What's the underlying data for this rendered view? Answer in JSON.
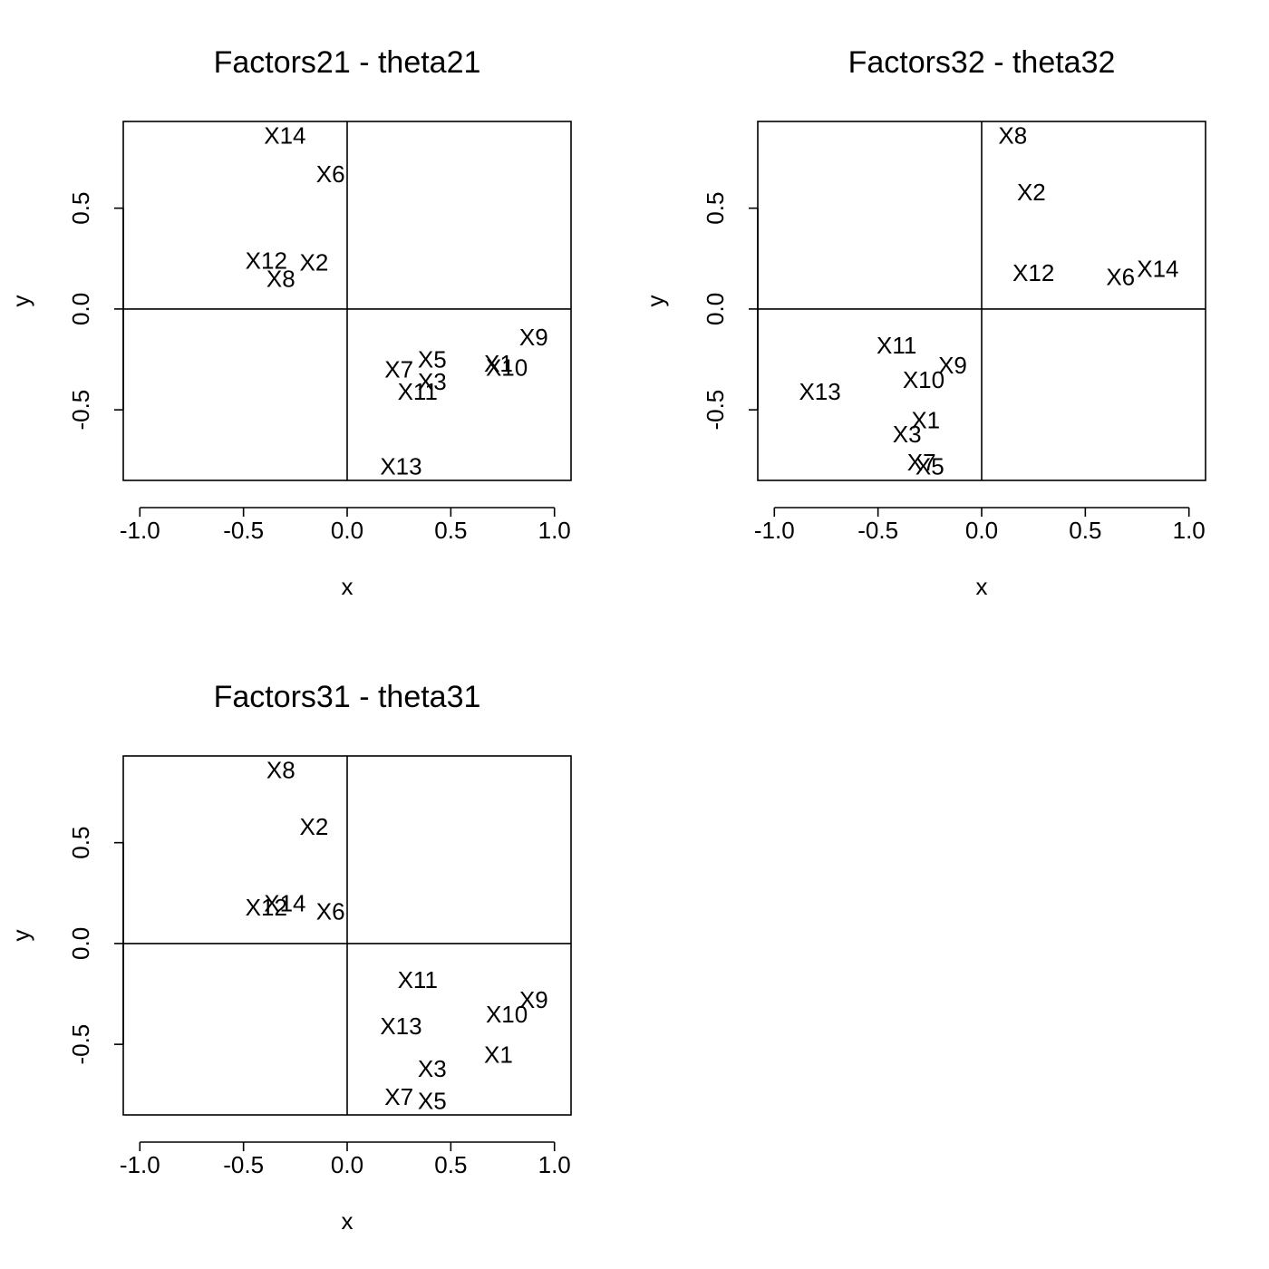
{
  "chart_data": [
    {
      "type": "scatter",
      "title": "Factors21 - theta21",
      "xlabel": "x",
      "ylabel": "y",
      "xlim": [
        -1.08,
        1.08
      ],
      "ylim": [
        -0.85,
        0.93
      ],
      "xticks": [
        -1.0,
        -0.5,
        0.0,
        0.5,
        1.0
      ],
      "xtick_labels": [
        "-1.0",
        "-0.5",
        "0.0",
        "0.5",
        "1.0"
      ],
      "yticks": [
        -0.5,
        0.0,
        0.5
      ],
      "ytick_labels": [
        "-0.5",
        "0.0",
        "0.5"
      ],
      "reference_lines": {
        "x": 0,
        "y": 0
      },
      "points": [
        {
          "label": "X14",
          "x": -0.3,
          "y": 0.86
        },
        {
          "label": "X6",
          "x": -0.08,
          "y": 0.67
        },
        {
          "label": "X12",
          "x": -0.39,
          "y": 0.24
        },
        {
          "label": "X2",
          "x": -0.16,
          "y": 0.23
        },
        {
          "label": "X8",
          "x": -0.32,
          "y": 0.15
        },
        {
          "label": "X9",
          "x": 0.9,
          "y": -0.14
        },
        {
          "label": "X5",
          "x": 0.41,
          "y": -0.25
        },
        {
          "label": "X1",
          "x": 0.73,
          "y": -0.27
        },
        {
          "label": "X10",
          "x": 0.77,
          "y": -0.29
        },
        {
          "label": "X7",
          "x": 0.25,
          "y": -0.3
        },
        {
          "label": "X3",
          "x": 0.41,
          "y": -0.36
        },
        {
          "label": "X11",
          "x": 0.34,
          "y": -0.41
        },
        {
          "label": "X13",
          "x": 0.26,
          "y": -0.78
        }
      ]
    },
    {
      "type": "scatter",
      "title": "Factors32 - theta32",
      "xlabel": "x",
      "ylabel": "y",
      "xlim": [
        -1.08,
        1.08
      ],
      "ylim": [
        -0.85,
        0.93
      ],
      "xticks": [
        -1.0,
        -0.5,
        0.0,
        0.5,
        1.0
      ],
      "xtick_labels": [
        "-1.0",
        "-0.5",
        "0.0",
        "0.5",
        "1.0"
      ],
      "yticks": [
        -0.5,
        0.0,
        0.5
      ],
      "ytick_labels": [
        "-0.5",
        "0.0",
        "0.5"
      ],
      "reference_lines": {
        "x": 0,
        "y": 0
      },
      "points": [
        {
          "label": "X8",
          "x": 0.15,
          "y": 0.86
        },
        {
          "label": "X2",
          "x": 0.24,
          "y": 0.58
        },
        {
          "label": "X12",
          "x": 0.25,
          "y": 0.18
        },
        {
          "label": "X6",
          "x": 0.67,
          "y": 0.16
        },
        {
          "label": "X14",
          "x": 0.85,
          "y": 0.2
        },
        {
          "label": "X11",
          "x": -0.41,
          "y": -0.18
        },
        {
          "label": "X9",
          "x": -0.14,
          "y": -0.28
        },
        {
          "label": "X10",
          "x": -0.28,
          "y": -0.35
        },
        {
          "label": "X13",
          "x": -0.78,
          "y": -0.41
        },
        {
          "label": "X1",
          "x": -0.27,
          "y": -0.55
        },
        {
          "label": "X3",
          "x": -0.36,
          "y": -0.62
        },
        {
          "label": "X7",
          "x": -0.29,
          "y": -0.76
        },
        {
          "label": "X5",
          "x": -0.25,
          "y": -0.78
        }
      ]
    },
    {
      "type": "scatter",
      "title": "Factors31 - theta31",
      "xlabel": "x",
      "ylabel": "y",
      "xlim": [
        -1.08,
        1.08
      ],
      "ylim": [
        -0.85,
        0.93
      ],
      "xticks": [
        -1.0,
        -0.5,
        0.0,
        0.5,
        1.0
      ],
      "xtick_labels": [
        "-1.0",
        "-0.5",
        "0.0",
        "0.5",
        "1.0"
      ],
      "yticks": [
        -0.5,
        0.0,
        0.5
      ],
      "ytick_labels": [
        "-0.5",
        "0.0",
        "0.5"
      ],
      "reference_lines": {
        "x": 0,
        "y": 0
      },
      "points": [
        {
          "label": "X8",
          "x": -0.32,
          "y": 0.86
        },
        {
          "label": "X2",
          "x": -0.16,
          "y": 0.58
        },
        {
          "label": "X14",
          "x": -0.3,
          "y": 0.2
        },
        {
          "label": "X12",
          "x": -0.39,
          "y": 0.18
        },
        {
          "label": "X6",
          "x": -0.08,
          "y": 0.16
        },
        {
          "label": "X11",
          "x": 0.34,
          "y": -0.18
        },
        {
          "label": "X9",
          "x": 0.9,
          "y": -0.28
        },
        {
          "label": "X10",
          "x": 0.77,
          "y": -0.35
        },
        {
          "label": "X13",
          "x": 0.26,
          "y": -0.41
        },
        {
          "label": "X1",
          "x": 0.73,
          "y": -0.55
        },
        {
          "label": "X3",
          "x": 0.41,
          "y": -0.62
        },
        {
          "label": "X7",
          "x": 0.25,
          "y": -0.76
        },
        {
          "label": "X5",
          "x": 0.41,
          "y": -0.78
        }
      ]
    }
  ]
}
